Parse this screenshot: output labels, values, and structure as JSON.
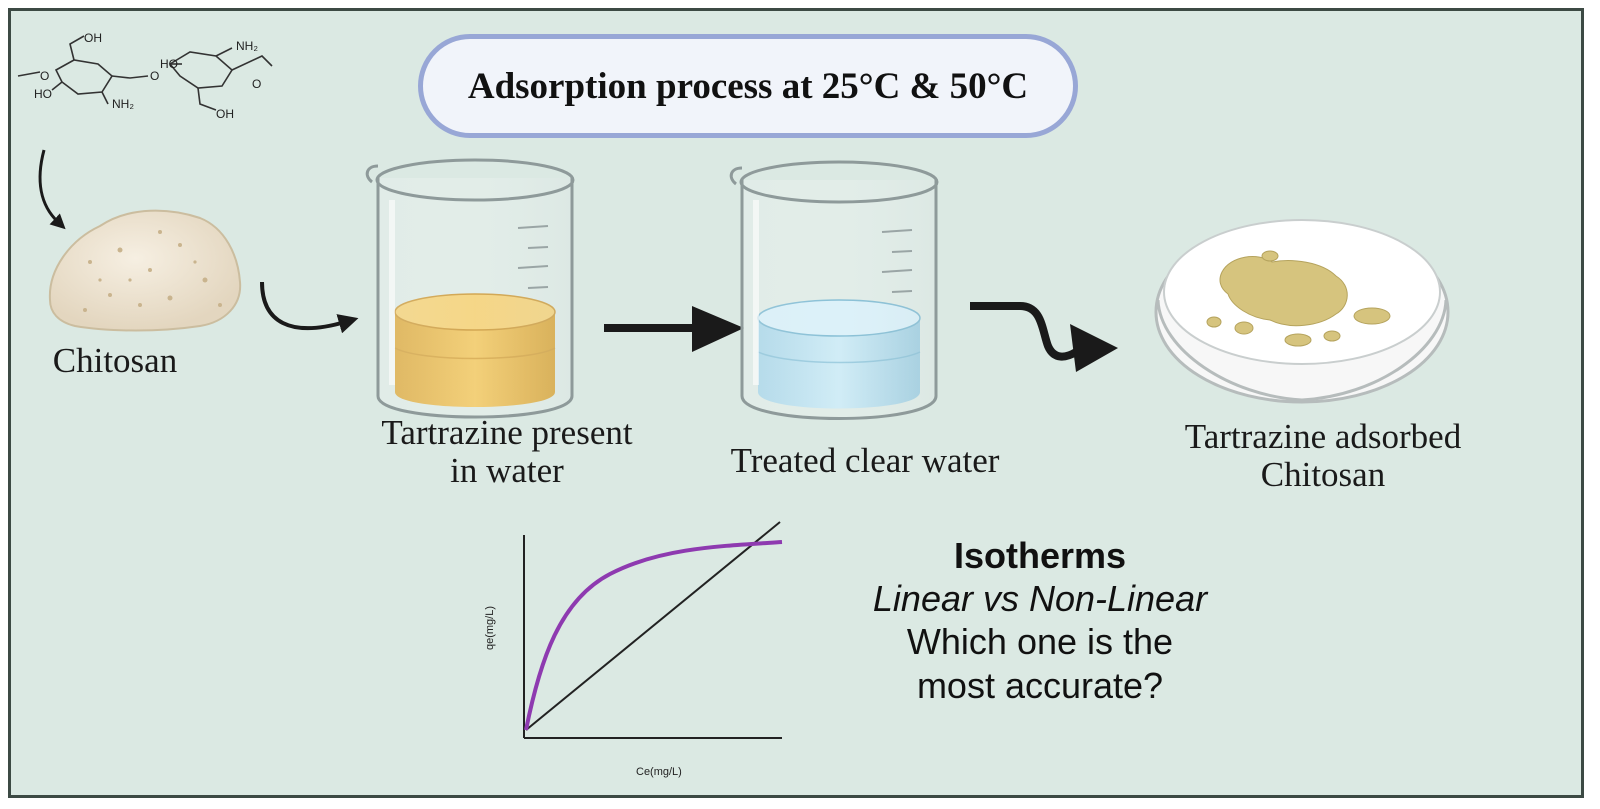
{
  "title": "Adsorption process at 25°C & 50°C",
  "molecule": {
    "labels": [
      "OH",
      "HO",
      "NH₂",
      "HO",
      "NH₂",
      "OH",
      "O",
      "O",
      "O"
    ]
  },
  "labels": {
    "chitosan": "Chitosan",
    "beaker1": [
      "Tartrazine present",
      "in water"
    ],
    "beaker2": "Treated clear water",
    "dish": [
      "Tartrazine adsorbed",
      "Chitosan"
    ]
  },
  "isotherms": {
    "heading": "Isotherms",
    "subheading": "Linear vs Non-Linear",
    "question": [
      "Which one is the",
      "most accurate?"
    ]
  },
  "chart_data": {
    "type": "line",
    "xlabel": "Ce(mg/L)",
    "ylabel": "qe(mg/L)",
    "series": [
      {
        "shape": "linear",
        "color": "#222222"
      },
      {
        "shape": "non-linear (saturating)",
        "color": "#8e3ab0"
      }
    ]
  },
  "colors": {
    "background": "#dbe9e3",
    "title_border": "#98a7d6",
    "tartrazine": "#e6b040",
    "clear_water": "#a9d8ea",
    "curve": "#8e3ab0"
  }
}
